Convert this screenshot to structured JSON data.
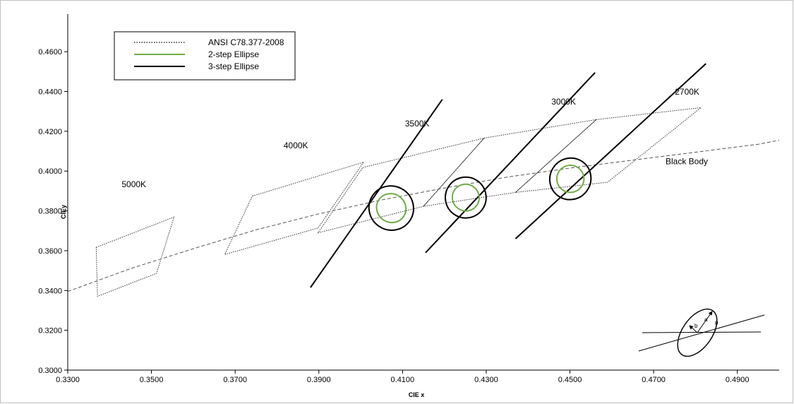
{
  "chart_data": {
    "type": "line",
    "title": "",
    "xlabel": "CIE x",
    "ylabel": "CIEy",
    "xlim": [
      0.33,
      0.5
    ],
    "ylim": [
      0.3,
      0.47
    ],
    "xticks": [
      0.33,
      0.35,
      0.37,
      0.39,
      0.41,
      0.43,
      0.45,
      0.47,
      0.49
    ],
    "yticks": [
      0.3,
      0.32,
      0.34,
      0.36,
      0.38,
      0.4,
      0.42,
      0.44,
      0.46
    ],
    "xtick_labels": [
      "0.3300",
      "0.3500",
      "0.3700",
      "0.3900",
      "0.4100",
      "0.4300",
      "0.4500",
      "0.4700",
      "0.4900"
    ],
    "ytick_labels": [
      "0.3000",
      "0.3200",
      "0.3400",
      "0.3600",
      "0.3800",
      "0.4000",
      "0.4200",
      "0.4400",
      "0.4600"
    ],
    "grid": false,
    "legend_position": "top-left",
    "legend": [
      {
        "label": "ANSI C78.377-2008",
        "style": "dotted",
        "color": "#000000"
      },
      {
        "label": "2-step Ellipse",
        "style": "solid",
        "color": "#70ad47"
      },
      {
        "label": "3-step Ellipse",
        "style": "solid",
        "color": "#000000"
      }
    ],
    "black_body": {
      "label": "Black Body",
      "x": [
        0.33,
        0.345,
        0.36,
        0.375,
        0.39,
        0.405,
        0.42,
        0.435,
        0.45,
        0.465,
        0.48,
        0.495,
        0.5
      ],
      "y": [
        0.3395,
        0.351,
        0.361,
        0.3705,
        0.3785,
        0.3855,
        0.3915,
        0.397,
        0.4015,
        0.4055,
        0.4095,
        0.4135,
        0.4155
      ]
    },
    "ansi_quads": [
      {
        "label": "5000K",
        "points": [
          [
            0.3368,
            0.3617
          ],
          [
            0.3554,
            0.3769
          ],
          [
            0.3512,
            0.3486
          ],
          [
            0.3371,
            0.3371
          ]
        ]
      },
      {
        "label": "4000K",
        "points": [
          [
            0.3741,
            0.3874
          ],
          [
            0.4007,
            0.4045
          ],
          [
            0.3898,
            0.3714
          ],
          [
            0.3675,
            0.3581
          ]
        ]
      },
      {
        "label": "3500K",
        "points": [
          [
            0.4005,
            0.4018
          ],
          [
            0.4295,
            0.4166
          ],
          [
            0.415,
            0.3823
          ],
          [
            0.3898,
            0.369
          ]
        ]
      },
      {
        "label": "3000K",
        "points": [
          [
            0.4295,
            0.4166
          ],
          [
            0.4563,
            0.4259
          ],
          [
            0.437,
            0.3893
          ],
          [
            0.415,
            0.3823
          ]
        ]
      },
      {
        "label": "2700K",
        "points": [
          [
            0.4563,
            0.4259
          ],
          [
            0.4813,
            0.4319
          ],
          [
            0.459,
            0.3944
          ],
          [
            0.437,
            0.3893
          ]
        ]
      }
    ],
    "isotemp_lines": [
      {
        "label": "3500K",
        "x1": 0.388,
        "y1": 0.3415,
        "x2": 0.4195,
        "y2": 0.436
      },
      {
        "label": "3000K",
        "x1": 0.4155,
        "y1": 0.359,
        "x2": 0.456,
        "y2": 0.4495
      },
      {
        "label": "2700K",
        "x1": 0.437,
        "y1": 0.366,
        "x2": 0.4825,
        "y2": 0.454
      }
    ],
    "cct_labels": [
      {
        "text": "5000K",
        "x": 0.3458,
        "y": 0.392
      },
      {
        "text": "4000K",
        "x": 0.3845,
        "y": 0.4115
      },
      {
        "text": "3500K",
        "x": 0.4135,
        "y": 0.4225
      },
      {
        "text": "3000K",
        "x": 0.4485,
        "y": 0.4335
      },
      {
        "text": "2700K",
        "x": 0.478,
        "y": 0.4385
      },
      {
        "text": "Black Body",
        "x": 0.4779,
        "y": 0.4035
      }
    ],
    "ellipses": [
      {
        "center": [
          0.4073,
          0.3814
        ],
        "a3": 0.0071,
        "b3": 0.0033,
        "a2": 0.0046,
        "b2": 0.0022,
        "theta_deg": 55
      },
      {
        "center": [
          0.4251,
          0.3867
        ],
        "a3": 0.0066,
        "b3": 0.003,
        "a2": 0.0043,
        "b2": 0.002,
        "theta_deg": 54
      },
      {
        "center": [
          0.4501,
          0.3961
        ],
        "a3": 0.0068,
        "b3": 0.003,
        "a2": 0.0044,
        "b2": 0.002,
        "theta_deg": 53
      }
    ],
    "inset": {
      "a_label": "a",
      "b_label": "b",
      "theta_label": "θ"
    }
  }
}
